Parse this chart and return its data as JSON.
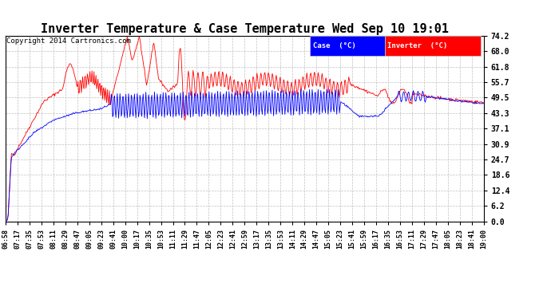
{
  "title": "Inverter Temperature & Case Temperature Wed Sep 10 19:01",
  "copyright": "Copyright 2014 Cartronics.com",
  "y_ticks": [
    0.0,
    6.2,
    12.4,
    18.6,
    24.7,
    30.9,
    37.1,
    43.3,
    49.5,
    55.7,
    61.8,
    68.0,
    74.2
  ],
  "ylim": [
    0.0,
    74.2
  ],
  "x_labels": [
    "06:58",
    "07:17",
    "07:35",
    "07:53",
    "08:11",
    "08:29",
    "08:47",
    "09:05",
    "09:23",
    "09:41",
    "10:00",
    "10:17",
    "10:35",
    "10:53",
    "11:11",
    "11:29",
    "11:47",
    "12:05",
    "12:23",
    "12:41",
    "12:59",
    "13:17",
    "13:35",
    "13:53",
    "14:11",
    "14:29",
    "14:47",
    "15:05",
    "15:23",
    "15:41",
    "15:59",
    "16:17",
    "16:35",
    "16:53",
    "17:11",
    "17:29",
    "17:47",
    "18:05",
    "18:23",
    "18:41",
    "19:00"
  ],
  "case_color": "#0000ff",
  "inverter_color": "#ff0000",
  "background_color": "#ffffff",
  "grid_color": "#aaaaaa",
  "title_fontsize": 11,
  "legend_case_label": "Case  (°C)",
  "legend_inverter_label": "Inverter  (°C)"
}
